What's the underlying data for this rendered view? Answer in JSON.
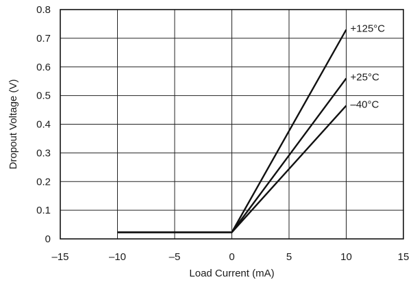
{
  "chart_data": {
    "type": "line",
    "title": "",
    "xlabel": "Load Current (mA)",
    "ylabel": "Dropout Voltage (V)",
    "xlim": [
      -15,
      15
    ],
    "ylim": [
      0,
      0.8
    ],
    "xticks": [
      -15,
      -10,
      -5,
      0,
      5,
      10,
      15
    ],
    "yticks": [
      0,
      0.1,
      0.2,
      0.3,
      0.4,
      0.5,
      0.6,
      0.7,
      0.8
    ],
    "xtick_labels": [
      "–15",
      "–10",
      "–5",
      "0",
      "5",
      "10",
      "15"
    ],
    "ytick_labels": [
      "0",
      "0.1",
      "0.2",
      "0.3",
      "0.4",
      "0.5",
      "0.6",
      "0.7",
      "0.8"
    ],
    "grid": true,
    "series": [
      {
        "name": "+125°C",
        "x": [
          -10,
          0,
          10
        ],
        "y": [
          0.023,
          0.023,
          0.73
        ]
      },
      {
        "name": "+25°C",
        "x": [
          -10,
          0,
          10
        ],
        "y": [
          0.023,
          0.023,
          0.56
        ]
      },
      {
        "name": "–40°C",
        "x": [
          -10,
          0,
          10
        ],
        "y": [
          0.023,
          0.023,
          0.465
        ]
      }
    ],
    "colors": {
      "line": "#111111",
      "grid": "#222222",
      "background": "#ffffff"
    }
  }
}
